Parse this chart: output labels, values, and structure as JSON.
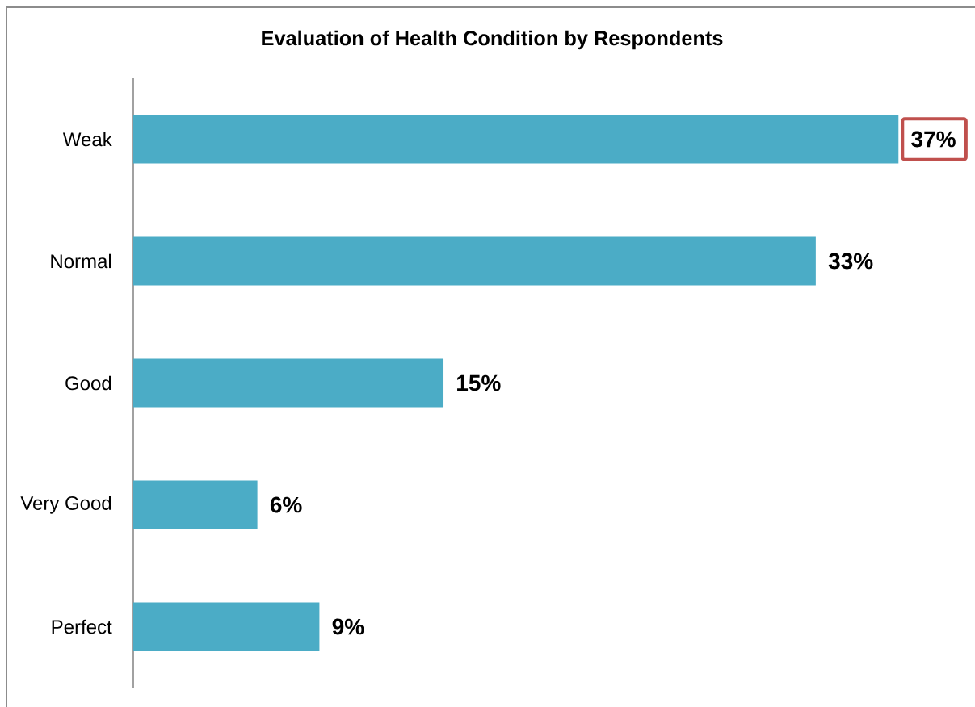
{
  "chart_data": {
    "type": "bar",
    "orientation": "horizontal",
    "title": "Evaluation of Health Condition by Respondents",
    "categories": [
      "Weak",
      "Normal",
      "Good",
      "Very Good",
      "Perfect"
    ],
    "values": [
      37,
      33,
      15,
      6,
      9
    ],
    "color": "#4bacc6",
    "value_labels": [
      "37%",
      "33%",
      "15%",
      "6%",
      "9%"
    ]
  }
}
